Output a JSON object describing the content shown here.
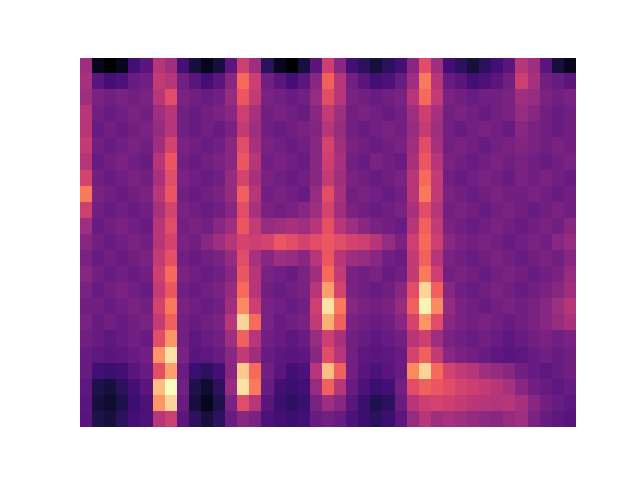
{
  "chart_data": {
    "type": "heatmap",
    "tick_labels": false,
    "color": "magma",
    "cells": [
      [
        50,
        15,
        10,
        15,
        30,
        35,
        55,
        50,
        30,
        20,
        15,
        20,
        35,
        60,
        50,
        25,
        15,
        10,
        20,
        35,
        60,
        45,
        30,
        25,
        20,
        25,
        30,
        45,
        65,
        50,
        30,
        25,
        20,
        25,
        30,
        35,
        55,
        50,
        35,
        20,
        15
      ],
      [
        52,
        35,
        30,
        32,
        38,
        40,
        58,
        55,
        40,
        35,
        30,
        35,
        45,
        72,
        60,
        40,
        35,
        30,
        35,
        45,
        70,
        55,
        40,
        35,
        30,
        32,
        38,
        50,
        75,
        55,
        38,
        35,
        30,
        32,
        35,
        40,
        60,
        52,
        40,
        38,
        35
      ],
      [
        50,
        42,
        40,
        42,
        40,
        42,
        55,
        65,
        42,
        40,
        38,
        40,
        48,
        68,
        58,
        42,
        40,
        38,
        40,
        48,
        65,
        55,
        42,
        40,
        38,
        40,
        42,
        55,
        72,
        58,
        42,
        40,
        38,
        40,
        40,
        42,
        50,
        48,
        42,
        40,
        42
      ],
      [
        55,
        40,
        38,
        40,
        42,
        40,
        50,
        55,
        40,
        38,
        40,
        42,
        45,
        60,
        52,
        40,
        42,
        40,
        38,
        45,
        58,
        50,
        40,
        42,
        40,
        38,
        40,
        50,
        60,
        52,
        40,
        42,
        40,
        38,
        40,
        42,
        48,
        45,
        40,
        38,
        40
      ],
      [
        55,
        38,
        40,
        38,
        40,
        42,
        48,
        55,
        40,
        38,
        40,
        38,
        42,
        58,
        50,
        40,
        38,
        40,
        42,
        44,
        55,
        48,
        40,
        38,
        40,
        42,
        40,
        48,
        58,
        50,
        40,
        38,
        40,
        42,
        40,
        38,
        45,
        42,
        40,
        38,
        40
      ],
      [
        58,
        40,
        38,
        40,
        42,
        40,
        50,
        62,
        42,
        40,
        38,
        40,
        45,
        65,
        52,
        42,
        40,
        38,
        40,
        45,
        62,
        50,
        42,
        40,
        38,
        40,
        42,
        50,
        65,
        52,
        40,
        42,
        40,
        38,
        40,
        42,
        44,
        42,
        40,
        42,
        40
      ],
      [
        55,
        38,
        40,
        42,
        40,
        38,
        55,
        68,
        40,
        38,
        40,
        42,
        45,
        68,
        55,
        40,
        42,
        40,
        38,
        45,
        60,
        52,
        40,
        38,
        42,
        40,
        38,
        52,
        68,
        55,
        42,
        40,
        38,
        40,
        42,
        40,
        42,
        40,
        38,
        40,
        42
      ],
      [
        62,
        40,
        38,
        40,
        42,
        40,
        52,
        65,
        42,
        40,
        38,
        40,
        48,
        62,
        52,
        42,
        40,
        38,
        40,
        45,
        58,
        50,
        42,
        40,
        38,
        40,
        42,
        55,
        72,
        58,
        40,
        38,
        40,
        42,
        40,
        38,
        42,
        40,
        42,
        40,
        38
      ],
      [
        75,
        42,
        40,
        38,
        40,
        42,
        55,
        68,
        40,
        38,
        40,
        42,
        48,
        70,
        55,
        40,
        42,
        40,
        38,
        48,
        65,
        52,
        40,
        42,
        40,
        38,
        40,
        55,
        75,
        58,
        42,
        40,
        38,
        40,
        42,
        40,
        40,
        42,
        40,
        38,
        40
      ],
      [
        60,
        40,
        38,
        40,
        38,
        40,
        52,
        62,
        42,
        40,
        38,
        40,
        45,
        65,
        52,
        42,
        40,
        42,
        45,
        50,
        62,
        50,
        42,
        40,
        38,
        40,
        42,
        52,
        65,
        55,
        40,
        42,
        40,
        38,
        40,
        42,
        40,
        38,
        40,
        42,
        40
      ],
      [
        50,
        38,
        40,
        42,
        40,
        38,
        55,
        65,
        40,
        42,
        40,
        45,
        50,
        68,
        58,
        48,
        50,
        52,
        50,
        55,
        66,
        55,
        50,
        45,
        42,
        40,
        38,
        55,
        70,
        58,
        42,
        40,
        38,
        40,
        42,
        40,
        38,
        40,
        42,
        40,
        45
      ],
      [
        45,
        40,
        38,
        40,
        42,
        40,
        55,
        62,
        42,
        40,
        45,
        50,
        55,
        62,
        60,
        62,
        68,
        65,
        62,
        65,
        68,
        65,
        62,
        60,
        55,
        48,
        42,
        60,
        72,
        60,
        45,
        42,
        40,
        42,
        40,
        38,
        40,
        42,
        40,
        45,
        48
      ],
      [
        42,
        38,
        40,
        38,
        40,
        42,
        58,
        66,
        40,
        38,
        40,
        42,
        48,
        65,
        52,
        45,
        50,
        48,
        45,
        55,
        68,
        55,
        50,
        48,
        45,
        40,
        38,
        58,
        70,
        55,
        42,
        40,
        38,
        40,
        42,
        40,
        38,
        40,
        42,
        40,
        45
      ],
      [
        45,
        40,
        38,
        40,
        38,
        40,
        60,
        72,
        42,
        40,
        38,
        40,
        45,
        68,
        55,
        42,
        40,
        38,
        42,
        50,
        72,
        58,
        42,
        40,
        42,
        38,
        40,
        58,
        75,
        60,
        40,
        42,
        40,
        38,
        40,
        42,
        40,
        38,
        40,
        42,
        48
      ],
      [
        42,
        38,
        40,
        42,
        40,
        38,
        58,
        68,
        40,
        38,
        40,
        42,
        48,
        72,
        55,
        40,
        38,
        40,
        42,
        55,
        82,
        62,
        42,
        40,
        38,
        40,
        45,
        65,
        92,
        70,
        45,
        40,
        38,
        40,
        42,
        40,
        38,
        40,
        42,
        45,
        50
      ],
      [
        40,
        40,
        38,
        40,
        42,
        40,
        62,
        75,
        42,
        40,
        38,
        40,
        50,
        78,
        60,
        42,
        40,
        38,
        40,
        60,
        95,
        75,
        45,
        42,
        40,
        42,
        48,
        70,
        98,
        78,
        48,
        42,
        40,
        38,
        40,
        42,
        40,
        42,
        45,
        50,
        55
      ],
      [
        42,
        38,
        40,
        38,
        40,
        42,
        58,
        70,
        40,
        38,
        40,
        42,
        55,
        92,
        72,
        42,
        38,
        40,
        42,
        58,
        85,
        70,
        42,
        40,
        38,
        40,
        45,
        62,
        80,
        65,
        45,
        42,
        40,
        42,
        40,
        38,
        40,
        42,
        45,
        48,
        52
      ],
      [
        40,
        38,
        36,
        38,
        40,
        38,
        65,
        80,
        40,
        36,
        38,
        40,
        50,
        70,
        55,
        40,
        38,
        36,
        38,
        48,
        60,
        52,
        40,
        38,
        36,
        38,
        40,
        55,
        60,
        50,
        42,
        40,
        38,
        40,
        38,
        36,
        38,
        40,
        42,
        40,
        42
      ],
      [
        38,
        36,
        35,
        36,
        38,
        40,
        80,
        95,
        42,
        35,
        36,
        38,
        45,
        58,
        50,
        38,
        36,
        35,
        36,
        45,
        65,
        55,
        40,
        36,
        35,
        36,
        38,
        62,
        70,
        58,
        45,
        42,
        40,
        38,
        36,
        35,
        36,
        38,
        40,
        38,
        40
      ],
      [
        38,
        30,
        28,
        30,
        35,
        38,
        65,
        82,
        38,
        28,
        25,
        30,
        45,
        90,
        72,
        40,
        35,
        30,
        32,
        55,
        88,
        70,
        40,
        35,
        32,
        35,
        38,
        78,
        92,
        72,
        62,
        58,
        55,
        50,
        48,
        45,
        40,
        38,
        36,
        38,
        40
      ],
      [
        36,
        22,
        20,
        25,
        30,
        35,
        88,
        100,
        40,
        22,
        18,
        25,
        48,
        95,
        75,
        38,
        30,
        28,
        30,
        48,
        70,
        55,
        38,
        32,
        28,
        30,
        40,
        65,
        70,
        68,
        65,
        62,
        60,
        58,
        55,
        52,
        45,
        40,
        38,
        36,
        38
      ],
      [
        35,
        20,
        18,
        22,
        28,
        32,
        80,
        92,
        38,
        20,
        15,
        22,
        42,
        65,
        55,
        35,
        28,
        25,
        28,
        42,
        50,
        45,
        35,
        28,
        22,
        25,
        38,
        55,
        60,
        62,
        60,
        58,
        56,
        55,
        54,
        55,
        52,
        45,
        40,
        38,
        36
      ],
      [
        34,
        22,
        20,
        25,
        30,
        32,
        55,
        60,
        35,
        25,
        20,
        25,
        38,
        45,
        42,
        32,
        30,
        28,
        30,
        38,
        40,
        38,
        32,
        28,
        25,
        28,
        35,
        48,
        55,
        50,
        52,
        50,
        48,
        46,
        45,
        48,
        50,
        42,
        38,
        36,
        34
      ]
    ]
  }
}
